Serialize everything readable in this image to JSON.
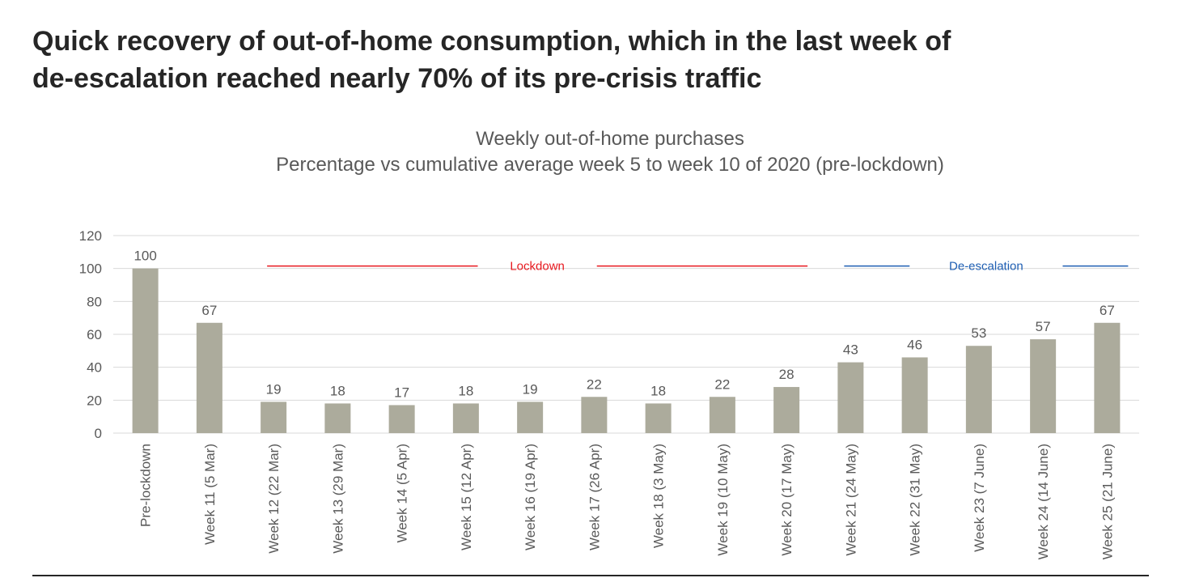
{
  "headline": {
    "line1": "Quick recovery of out-of-home consumption, which in the last week of",
    "line2": "de-escalation reached nearly 70% of its pre-crisis traffic"
  },
  "chart_data": {
    "type": "bar",
    "title": "Weekly out-of-home purchases",
    "subtitle": "Percentage vs cumulative average week 5 to week 10 of 2020 (pre-lockdown)",
    "xlabel": "",
    "ylabel": "",
    "ylim": [
      0,
      120
    ],
    "yticks": [
      0,
      20,
      40,
      60,
      80,
      100,
      120
    ],
    "grid": true,
    "categories": [
      "Pre-lockdown",
      "Week 11 (5 Mar)",
      "Week 12 (22 Mar)",
      "Week 13 (29 Mar)",
      "Week 14 (5 Apr)",
      "Week 15 (12 Apr)",
      "Week 16 (19 Apr)",
      "Week 17 (26 Apr)",
      "Week 18 (3 May)",
      "Week 19 (10 May)",
      "Week 20 (17 May)",
      "Week 21 (24 May)",
      "Week 22 (31 May)",
      "Week 23 (7 June)",
      "Week 24 (14 June)",
      "Week 25 (21 June)"
    ],
    "values": [
      100,
      67,
      19,
      18,
      17,
      18,
      19,
      22,
      18,
      22,
      28,
      43,
      46,
      53,
      57,
      67
    ],
    "colors": {
      "bar": "#acab9c",
      "grid": "#d9d9d9",
      "axis_text": "#595959",
      "title_text": "#595959",
      "lockdown": "#e8191f",
      "deescalation": "#1f5fb3"
    },
    "annotations": [
      {
        "label": "Lockdown",
        "color_key": "lockdown",
        "from_category": 2,
        "to_category": 10,
        "y": 102
      },
      {
        "label": "De-escalation",
        "color_key": "deescalation",
        "from_category": 11,
        "to_category": 15,
        "y": 102
      }
    ]
  }
}
